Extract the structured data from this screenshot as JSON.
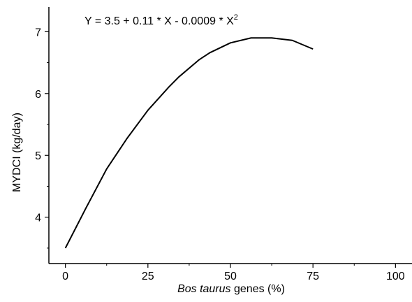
{
  "chart_data": {
    "type": "line",
    "equation": {
      "prefix": "Y = 3.5 + 0.11 * X - 0.0009 * X",
      "exponent": "2"
    },
    "xlabel": {
      "italic": "Bos taurus",
      "rest": " genes (%)"
    },
    "ylabel": "MYDCI (kg/day)",
    "xlim": [
      -5,
      105
    ],
    "ylim": [
      3.25,
      7.4
    ],
    "x_ticks": [
      0,
      25,
      50,
      75,
      100
    ],
    "x_tick_labels": [
      "0",
      "25",
      "50",
      "75",
      "100"
    ],
    "x_minor_ticks": [
      12.5,
      37.5,
      62.5,
      87.5
    ],
    "y_ticks": [
      4,
      5,
      6,
      7
    ],
    "y_tick_labels": [
      "4",
      "5",
      "6",
      "7"
    ],
    "y_minor_ticks": [
      3.5,
      4.5,
      5.5,
      6.5
    ],
    "grid": false,
    "series": [
      {
        "x": [
          0,
          6.25,
          12.5,
          18.75,
          25,
          31.25,
          34.4,
          40.6,
          43.75,
          50,
          56.25,
          62.5,
          68.75,
          75
        ],
        "y": [
          3.5,
          4.15,
          4.78,
          5.28,
          5.73,
          6.1,
          6.27,
          6.55,
          6.66,
          6.82,
          6.9,
          6.9,
          6.86,
          6.72
        ]
      }
    ],
    "line_color": "#000000"
  }
}
